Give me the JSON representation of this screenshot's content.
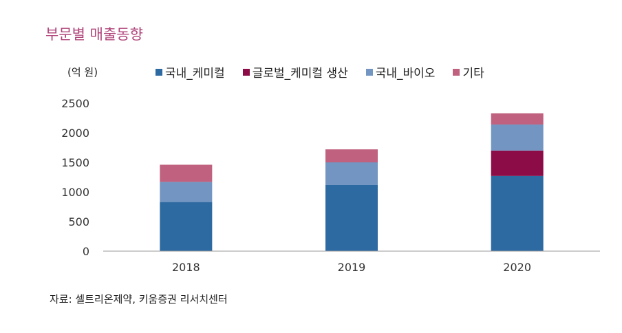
{
  "title": "부문별 매출동향",
  "unit": "(억 원)",
  "source": "자료: 셀트리온제약, 키움증권 리서치센터",
  "chart_data": {
    "type": "bar",
    "stacked": true,
    "categories": [
      "2018",
      "2019",
      "2020"
    ],
    "series": [
      {
        "name": "국내_케미컬",
        "color": "#2e6aa2",
        "values": [
          830,
          1120,
          1270
        ]
      },
      {
        "name": "글로벌_케미컬 생산",
        "color": "#8b0c47",
        "values": [
          0,
          0,
          430
        ]
      },
      {
        "name": "국내_바이오",
        "color": "#7295c1",
        "values": [
          340,
          380,
          440
        ]
      },
      {
        "name": "기타",
        "color": "#c0627f",
        "values": [
          290,
          220,
          190
        ]
      }
    ],
    "ylim": [
      0,
      2500
    ],
    "yticks": [
      0,
      500,
      1000,
      1500,
      2000,
      2500
    ],
    "grid": false,
    "legend_position": "top"
  }
}
